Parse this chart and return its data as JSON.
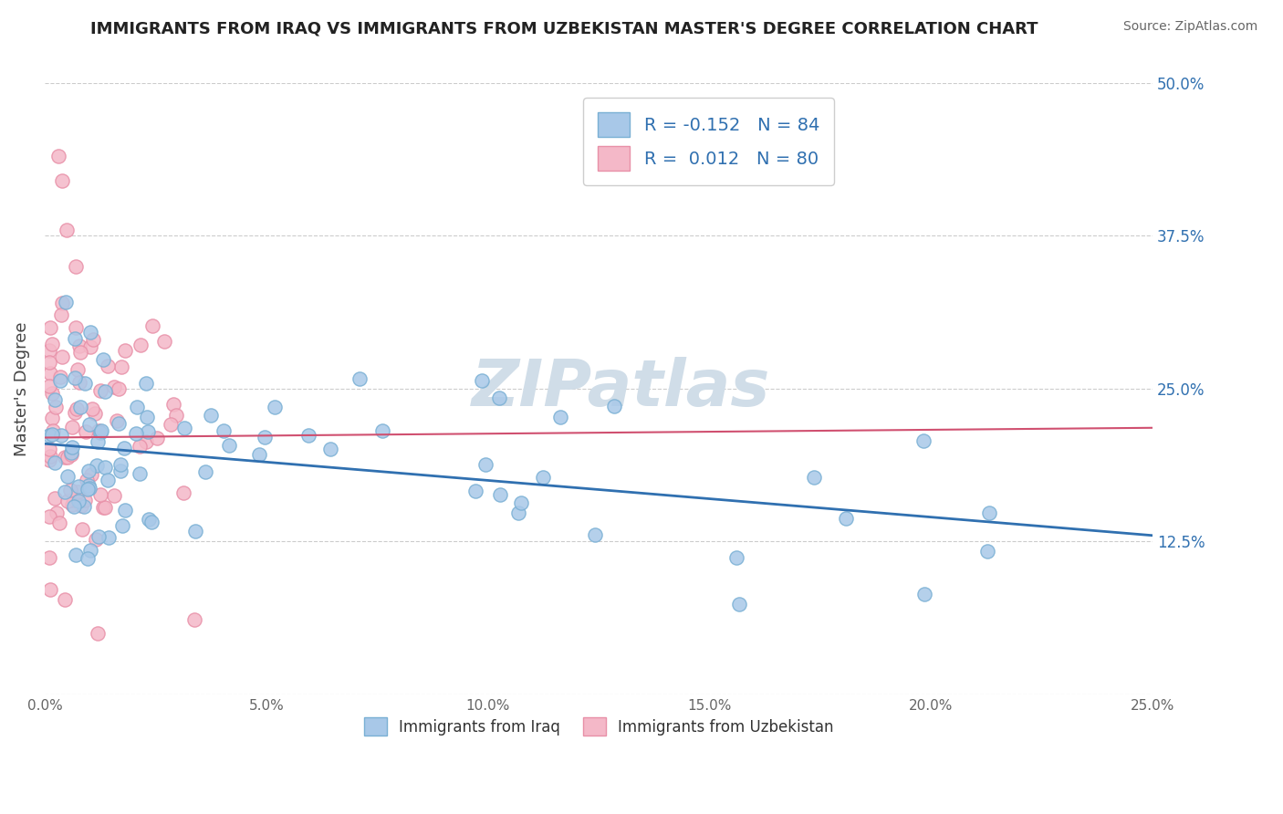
{
  "title": "IMMIGRANTS FROM IRAQ VS IMMIGRANTS FROM UZBEKISTAN MASTER'S DEGREE CORRELATION CHART",
  "source": "Source: ZipAtlas.com",
  "ylabel": "Master's Degree",
  "xlim": [
    0.0,
    0.25
  ],
  "ylim": [
    0.0,
    0.5
  ],
  "xticks": [
    0.0,
    0.05,
    0.1,
    0.15,
    0.2,
    0.25
  ],
  "xtick_labels": [
    "0.0%",
    "5.0%",
    "10.0%",
    "15.0%",
    "20.0%",
    "25.0%"
  ],
  "yticks": [
    0.0,
    0.125,
    0.25,
    0.375,
    0.5
  ],
  "ytick_labels_right": [
    "",
    "12.5%",
    "25.0%",
    "37.5%",
    "50.0%"
  ],
  "iraq_R": -0.152,
  "iraq_N": 84,
  "uzbekistan_R": 0.012,
  "uzbekistan_N": 80,
  "blue_color": "#a8c8e8",
  "blue_edge_color": "#7ab0d4",
  "pink_color": "#f4b8c8",
  "pink_edge_color": "#e890a8",
  "blue_line_color": "#3070b0",
  "pink_line_color": "#d05070",
  "watermark_color": "#d0dde8",
  "legend_iraq": "Immigrants from Iraq",
  "legend_uzbekistan": "Immigrants from Uzbekistan",
  "blue_line_start_y": 0.205,
  "blue_line_end_y": 0.13,
  "pink_line_start_y": 0.21,
  "pink_line_end_y": 0.218,
  "iraq_seed": 123,
  "uzbekistan_seed": 456
}
